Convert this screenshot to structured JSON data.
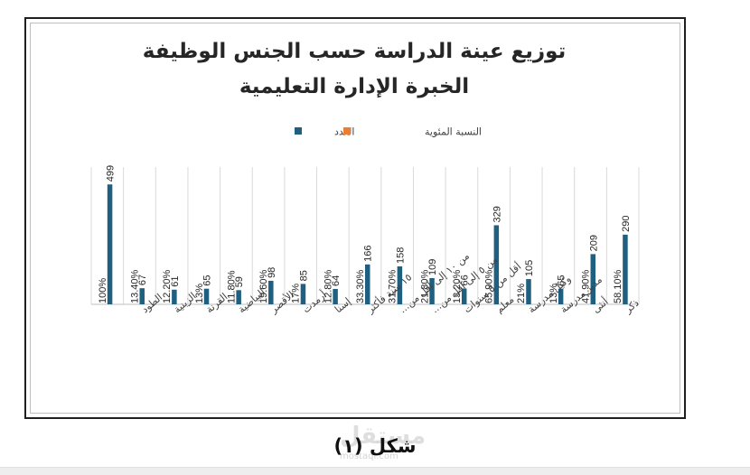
{
  "chart_data": {
    "type": "bar",
    "title_lines": [
      "توزيع عينة الدراسة حسب الجنس الوظيفة",
      "الخبرة الإدارة التعليمية"
    ],
    "legend": [
      {
        "name": "العدد",
        "color": "#1f5f7f"
      },
      {
        "name": "النسبة المئوية",
        "color": "#ed7d31"
      }
    ],
    "categories": [
      "ذكر",
      "أنثى",
      "مدير مدرسة",
      "وكيل مدرسة",
      "معلم",
      "أقل من ٥ سنوات",
      "من ٥ إلى أقل من...",
      "من ١٠ إلى أقل من...",
      "١٥ سنة فأكثر",
      "إسنا",
      "أرمدت",
      "الأقصر",
      "البياضية",
      "القرنة",
      "الزينية",
      "الطود"
    ],
    "series": [
      {
        "name": "العدد",
        "values": [
          290,
          209,
          65,
          105,
          329,
          66,
          109,
          158,
          166,
          64,
          85,
          98,
          59,
          65,
          61,
          67
        ]
      },
      {
        "name": "النسبة المئوية",
        "values": [
          0.581,
          0.419,
          0.13,
          0.21,
          0.659,
          0.132,
          0.218,
          0.317,
          0.333,
          0.128,
          0.17,
          0.196,
          0.118,
          0.13,
          0.122,
          0.134
        ]
      }
    ],
    "count_labels": [
      "290",
      "209",
      "65",
      "105",
      "329",
      "66",
      "109",
      "158",
      "166",
      "64",
      "85",
      "98",
      "59",
      "65",
      "61",
      "67"
    ],
    "percent_labels": [
      "58.10%",
      "41.90%",
      "13%",
      "21%",
      "65.90%",
      "13.20%",
      "21.80%",
      "31.70%",
      "33.30%",
      "12.80%",
      "17%",
      "19.60%",
      "11.80%",
      "13%",
      "12.20%",
      "13.40%"
    ],
    "extra_bar": {
      "category_index": 16,
      "count": 499,
      "count_label": "499",
      "percent_label": "100%"
    },
    "ylim": [
      0,
      560
    ],
    "grid": "vertical-lines",
    "legend_position": "top-right"
  },
  "caption": "شكل (١)",
  "watermark": "مستقل",
  "watermark_url": "mostaqi.com"
}
